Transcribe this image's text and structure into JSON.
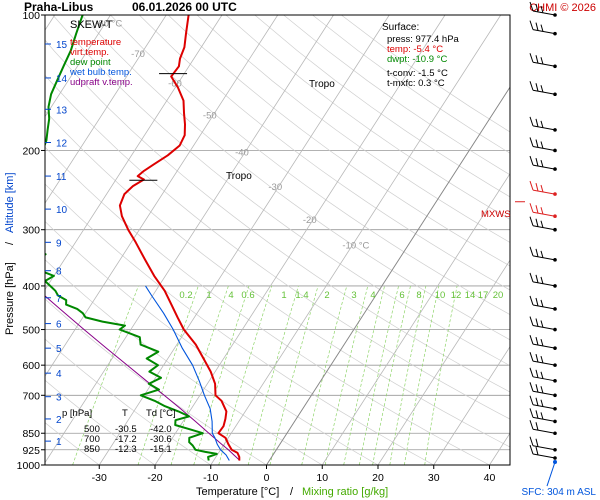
{
  "header": {
    "station": "Praha-Libus",
    "datetime": "06.01.2026 00 UTC",
    "copyright": "CHMI © 2026"
  },
  "legend": {
    "title": "SKEW-T",
    "items": [
      {
        "label": "temperature",
        "color": "#dd0000"
      },
      {
        "label": "virt.temp.",
        "color": "#dd0000"
      },
      {
        "label": "dew point",
        "color": "#008800"
      },
      {
        "label": "wet bulb temp.",
        "color": "#0055dd"
      },
      {
        "label": "udpraft v.temp.",
        "color": "#880088"
      }
    ]
  },
  "surface": {
    "title": "Surface:",
    "press": "press: 977.4 hPa",
    "temp": "temp: -5.4 °C",
    "dwpt": "dwpt: -10.9 °C",
    "tconv": "t-conv: -1.5 °C",
    "tmxfc": "t-mxfc: 0.3 °C"
  },
  "table": {
    "headers": [
      "p [hPa]",
      "T",
      "Td [°C]"
    ],
    "rows": [
      [
        "500",
        "-30.5",
        "-42.0"
      ],
      [
        "700",
        "-17.2",
        "-30.6"
      ],
      [
        "850",
        "-12.3",
        "-15.1"
      ]
    ]
  },
  "labels": {
    "tropo1": "Tropo",
    "tropo2": "Tropo",
    "mxws": "MXWS",
    "sfc": "SFC: 304 m ASL",
    "xlabel_temp": "Temperature [°C]",
    "xlabel_sep": "/",
    "xlabel_mix": "Mixing ratio [g/kg]",
    "ylabel_p": "Pressure [hPa]",
    "ylabel_sep": "/",
    "ylabel_alt": "Altitude [km]"
  },
  "chart_data": {
    "type": "line",
    "title": "SKEW-T",
    "xlabel": "Temperature [°C]",
    "ylabel": "Pressure [hPa]",
    "xlim": [
      -36,
      44
    ],
    "ylim": [
      1000,
      100
    ],
    "y_scale": "log",
    "grid": true,
    "legend_position": "top-left",
    "x_ticks": [
      -30,
      -20,
      -10,
      0,
      10,
      20,
      30,
      40
    ],
    "pressure_ticks": [
      100,
      200,
      300,
      400,
      500,
      600,
      700,
      850,
      925,
      1000
    ],
    "altitude_ticks_km": [
      {
        "km": 1,
        "p": 885
      },
      {
        "km": 2,
        "p": 790
      },
      {
        "km": 3,
        "p": 705
      },
      {
        "km": 4,
        "p": 625
      },
      {
        "km": 5,
        "p": 550
      },
      {
        "km": 6,
        "p": 485
      },
      {
        "km": 7,
        "p": 425
      },
      {
        "km": 8,
        "p": 370
      },
      {
        "km": 9,
        "p": 320
      },
      {
        "km": 10,
        "p": 270
      },
      {
        "km": 11,
        "p": 228
      },
      {
        "km": 12,
        "p": 192
      },
      {
        "km": 13,
        "p": 162
      },
      {
        "km": 14,
        "p": 138
      },
      {
        "km": 15,
        "p": 116
      }
    ],
    "isotherm_labels": [
      {
        "t": -80,
        "label": "-80 °C",
        "p": 106
      },
      {
        "t": -70,
        "label": "-70",
        "p": 124
      },
      {
        "t": -60,
        "label": "-60",
        "p": 144
      },
      {
        "t": -50,
        "label": "-50",
        "p": 170
      },
      {
        "t": -40,
        "label": "-40",
        "p": 205
      },
      {
        "t": -30,
        "label": "-30",
        "p": 245
      },
      {
        "t": -20,
        "label": "-20",
        "p": 290
      },
      {
        "t": -10,
        "label": "-10 °C",
        "p": 330
      }
    ],
    "mixing_ratios": [
      "0.2",
      "1",
      "4",
      "0.6",
      "1",
      "1.4",
      "2",
      "3",
      "4",
      "6",
      "8",
      "10",
      "12",
      "14",
      "17",
      "20",
      "25"
    ],
    "mixing_ratio_values": [
      0.2,
      1,
      4,
      0.6,
      1,
      1.4,
      2,
      3,
      4,
      6,
      8,
      10,
      12,
      14,
      17,
      20,
      25
    ],
    "series": [
      {
        "name": "temperature",
        "color": "#dd0000",
        "points": [
          [
            977,
            -5.4
          ],
          [
            960,
            -5.8
          ],
          [
            940,
            -6.6
          ],
          [
            925,
            -8.0
          ],
          [
            900,
            -9.2
          ],
          [
            870,
            -10.5
          ],
          [
            850,
            -12.3
          ],
          [
            820,
            -12.2
          ],
          [
            790,
            -12.7
          ],
          [
            760,
            -13.4
          ],
          [
            720,
            -15.5
          ],
          [
            700,
            -17.2
          ],
          [
            660,
            -18.6
          ],
          [
            620,
            -20.8
          ],
          [
            580,
            -23.6
          ],
          [
            540,
            -26.6
          ],
          [
            500,
            -30.5
          ],
          [
            470,
            -33.0
          ],
          [
            440,
            -35.6
          ],
          [
            410,
            -38.4
          ],
          [
            380,
            -42.0
          ],
          [
            350,
            -45.5
          ],
          [
            320,
            -49.2
          ],
          [
            300,
            -52.0
          ],
          [
            280,
            -54.7
          ],
          [
            265,
            -56.3
          ],
          [
            250,
            -56.8
          ],
          [
            240,
            -56.2
          ],
          [
            232,
            -55.0
          ],
          [
            228,
            -56.5
          ],
          [
            222,
            -56.0
          ],
          [
            215,
            -55.0
          ],
          [
            205,
            -53.5
          ],
          [
            195,
            -52.5
          ],
          [
            185,
            -52.8
          ],
          [
            175,
            -54.0
          ],
          [
            165,
            -55.5
          ],
          [
            155,
            -57.0
          ],
          [
            145,
            -59.5
          ],
          [
            137,
            -62.0
          ],
          [
            130,
            -61.8
          ],
          [
            125,
            -62.5
          ],
          [
            118,
            -63.0
          ],
          [
            110,
            -64.3
          ],
          [
            100,
            -66.0
          ]
        ]
      },
      {
        "name": "dew point",
        "color": "#008800",
        "points": [
          [
            977,
            -10.9
          ],
          [
            960,
            -11.4
          ],
          [
            945,
            -10.2
          ],
          [
            935,
            -12.5
          ],
          [
            925,
            -14.5
          ],
          [
            905,
            -15.5
          ],
          [
            890,
            -16.5
          ],
          [
            870,
            -17.0
          ],
          [
            850,
            -15.1
          ],
          [
            835,
            -17.5
          ],
          [
            815,
            -21.0
          ],
          [
            795,
            -21.5
          ],
          [
            780,
            -19.5
          ],
          [
            760,
            -22.0
          ],
          [
            740,
            -25.0
          ],
          [
            720,
            -27.5
          ],
          [
            700,
            -30.6
          ],
          [
            680,
            -28.0
          ],
          [
            660,
            -30.5
          ],
          [
            640,
            -29.0
          ],
          [
            620,
            -31.8
          ],
          [
            600,
            -31.0
          ],
          [
            580,
            -33.8
          ],
          [
            560,
            -32.5
          ],
          [
            540,
            -36.5
          ],
          [
            520,
            -37.5
          ],
          [
            500,
            -42.0
          ],
          [
            490,
            -41.5
          ],
          [
            480,
            -46.0
          ],
          [
            470,
            -49.5
          ],
          [
            460,
            -50.5
          ],
          [
            450,
            -52.0
          ],
          [
            440,
            -54.5
          ],
          [
            430,
            -55.0
          ],
          [
            420,
            -57.0
          ],
          [
            410,
            -58.0
          ],
          [
            400,
            -59.5
          ],
          [
            390,
            -61.0
          ],
          [
            380,
            -60.0
          ],
          [
            370,
            -63.0
          ],
          [
            360,
            -63.5
          ],
          [
            350,
            -64.5
          ],
          [
            340,
            -64.0
          ],
          [
            330,
            -66.5
          ],
          [
            320,
            -67.0
          ],
          [
            310,
            -68.0
          ],
          [
            300,
            -69.5
          ],
          [
            290,
            -70.0
          ],
          [
            280,
            -70.5
          ],
          [
            270,
            -71.0
          ],
          [
            260,
            -71.0
          ],
          [
            250,
            -72.0
          ],
          [
            240,
            -73.0
          ],
          [
            230,
            -74.5
          ],
          [
            220,
            -75.0
          ],
          [
            210,
            -76.0
          ],
          [
            200,
            -76.5
          ],
          [
            190,
            -77.0
          ],
          [
            180,
            -78.0
          ],
          [
            170,
            -79.0
          ],
          [
            160,
            -80.5
          ],
          [
            150,
            -81.5
          ],
          [
            140,
            -82.0
          ],
          [
            130,
            -82.5
          ],
          [
            120,
            -83.0
          ],
          [
            110,
            -84.0
          ],
          [
            100,
            -85.0
          ]
        ]
      },
      {
        "name": "wet bulb temp.",
        "color": "#0055dd",
        "points": [
          [
            977,
            -7.2
          ],
          [
            950,
            -8.4
          ],
          [
            925,
            -10.0
          ],
          [
            900,
            -11.2
          ],
          [
            870,
            -12.4
          ],
          [
            850,
            -13.4
          ],
          [
            800,
            -14.8
          ],
          [
            750,
            -16.6
          ],
          [
            700,
            -19.2
          ],
          [
            650,
            -21.8
          ],
          [
            600,
            -24.8
          ],
          [
            550,
            -28.6
          ],
          [
            500,
            -32.4
          ],
          [
            460,
            -36.0
          ],
          [
            420,
            -40.2
          ],
          [
            400,
            -42.4
          ]
        ]
      },
      {
        "name": "udpraft v.temp.",
        "color": "#880088",
        "points": [
          [
            977,
            -5.3
          ],
          [
            950,
            -7.0
          ],
          [
            925,
            -8.6
          ],
          [
            900,
            -10.4
          ],
          [
            850,
            -14.0
          ],
          [
            800,
            -17.8
          ],
          [
            750,
            -21.9
          ],
          [
            700,
            -26.4
          ],
          [
            650,
            -31.3
          ],
          [
            600,
            -36.5
          ],
          [
            550,
            -42.2
          ],
          [
            500,
            -48.4
          ],
          [
            450,
            -55.1
          ],
          [
            400,
            -62.5
          ],
          [
            350,
            -70.4
          ],
          [
            300,
            -79.0
          ],
          [
            250,
            -88.3
          ],
          [
            200,
            -98.0
          ],
          [
            150,
            -108.0
          ],
          [
            130,
            -112.0
          ]
        ]
      }
    ],
    "tropopauses_hpa": [
      135,
      233
    ],
    "wind_levels_hpa": [
      965,
      925,
      850,
      800,
      750,
      700,
      650,
      600,
      550,
      500,
      450,
      400,
      350,
      300,
      280,
      250,
      220,
      200,
      180,
      150,
      130,
      110,
      100
    ]
  }
}
